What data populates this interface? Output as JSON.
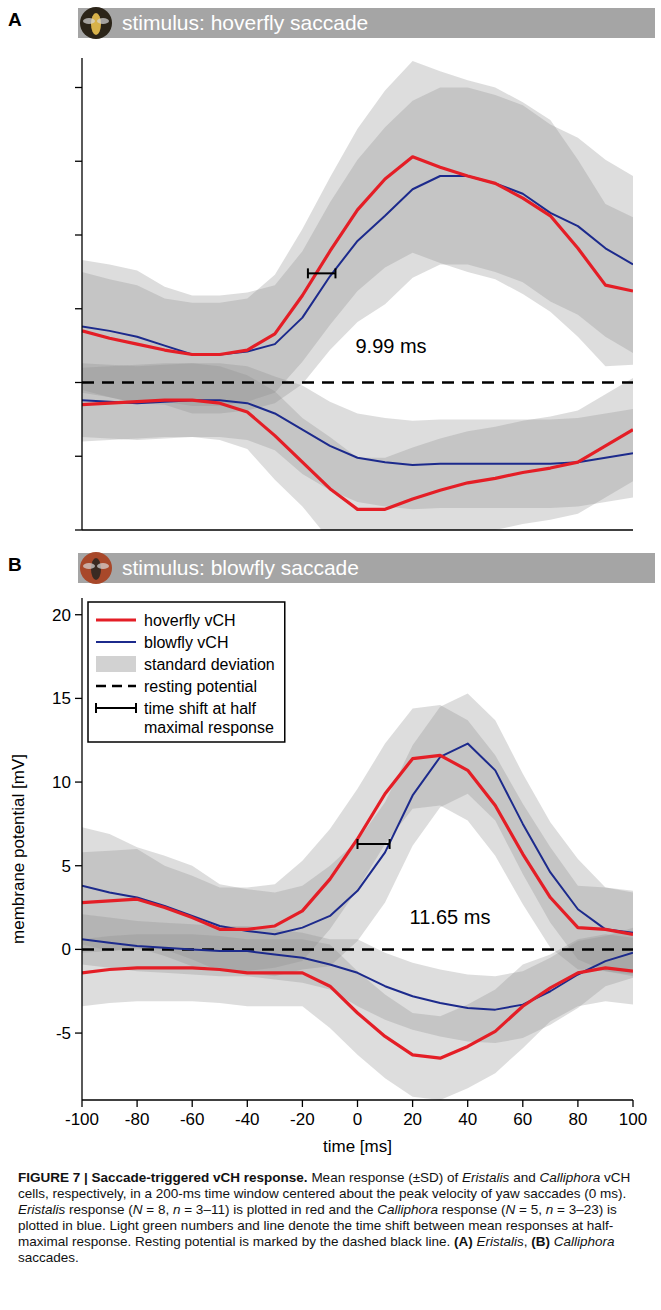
{
  "chart_data": [
    {
      "type": "line",
      "panel": "A",
      "title": "stimulus: hoverfly saccade",
      "x": [
        -100,
        -90,
        -80,
        -70,
        -60,
        -50,
        -40,
        -30,
        -20,
        -10,
        0,
        10,
        20,
        30,
        40,
        50,
        60,
        70,
        80,
        90,
        100
      ],
      "xlim": [
        -100,
        100
      ],
      "ylim": [
        -10,
        22
      ],
      "yticks": [
        -10,
        -5,
        0,
        5,
        10,
        15,
        20
      ],
      "tick_labels": false,
      "resting_potential": 0,
      "series": [
        {
          "color": "#e41e26",
          "line_style": "solid",
          "values": [
            3.5,
            3.0,
            2.6,
            2.2,
            1.9,
            1.9,
            2.2,
            3.3,
            5.9,
            8.9,
            11.7,
            13.8,
            15.3,
            14.6,
            14.0,
            13.5,
            12.5,
            11.3,
            9.1,
            6.6,
            6.2
          ],
          "sd": [
            4,
            4,
            4,
            3.5,
            3.5,
            3.5,
            3.5,
            4,
            4.5,
            5,
            5.5,
            6,
            6.5,
            6.5,
            6.5,
            6.5,
            6.5,
            6.5,
            6,
            5.5,
            5
          ]
        },
        {
          "color": "#1c2a8c",
          "line_style": "solid",
          "values": [
            3.8,
            3.5,
            3.1,
            2.5,
            1.9,
            1.9,
            2.1,
            2.6,
            4.4,
            7.2,
            9.6,
            11.3,
            13.1,
            14.0,
            14.0,
            13.5,
            12.8,
            11.5,
            10.6,
            9.1,
            8.0
          ],
          "sd": [
            4.5,
            4.5,
            4.5,
            4,
            4,
            4,
            4,
            4,
            4.5,
            5,
            5.5,
            6,
            6,
            6,
            6,
            6,
            6,
            6,
            6,
            6,
            6
          ]
        },
        {
          "color": "#e41e26",
          "line_style": "solid",
          "values": [
            -1.5,
            -1.4,
            -1.3,
            -1.2,
            -1.2,
            -1.4,
            -2.0,
            -3.6,
            -5.4,
            -7.2,
            -8.6,
            -8.6,
            -7.9,
            -7.3,
            -6.8,
            -6.5,
            -6.1,
            -5.8,
            -5.4,
            -4.3,
            -3.2
          ],
          "sd": [
            2.5,
            2.5,
            2.5,
            2.5,
            2.5,
            2.5,
            2.5,
            3,
            3,
            3.5,
            3.5,
            3.5,
            3.5,
            3.5,
            3.5,
            3.5,
            3.5,
            3.5,
            3.5,
            3.5,
            3.5
          ]
        },
        {
          "color": "#1c2a8c",
          "line_style": "solid",
          "values": [
            -1.2,
            -1.3,
            -1.4,
            -1.3,
            -1.2,
            -1.2,
            -1.4,
            -2.1,
            -3.2,
            -4.3,
            -5.1,
            -5.4,
            -5.6,
            -5.5,
            -5.5,
            -5.5,
            -5.5,
            -5.5,
            -5.4,
            -5.1,
            -4.8
          ],
          "sd": [
            2.5,
            2.5,
            2.5,
            2.5,
            2.5,
            2.5,
            2.5,
            2.5,
            3,
            3,
            3,
            3,
            3,
            3,
            3,
            3,
            3,
            3,
            3,
            3,
            3
          ]
        }
      ],
      "shift": {
        "label": "9.99 ms",
        "x": [
          -18,
          -8
        ],
        "y": 7.4
      }
    },
    {
      "type": "line",
      "panel": "B",
      "title": "stimulus: blowfly saccade",
      "x": [
        -100,
        -90,
        -80,
        -70,
        -60,
        -50,
        -40,
        -30,
        -20,
        -10,
        0,
        10,
        20,
        30,
        40,
        50,
        60,
        70,
        80,
        90,
        100
      ],
      "xlim": [
        -100,
        100
      ],
      "ylim": [
        -9,
        21
      ],
      "xticks": [
        -100,
        -80,
        -60,
        -40,
        -20,
        0,
        20,
        40,
        60,
        80,
        100
      ],
      "yticks": [
        -5,
        0,
        5,
        10,
        15,
        20
      ],
      "xlabel": "time [ms]",
      "ylabel": "membrane potential [mV]",
      "resting_potential": 0,
      "legend": "upper left",
      "sd_label": "standard deviation",
      "resting_label": "resting potential",
      "shift_legend_label": "time shift at half maximal response",
      "series": [
        {
          "name": "hoverfly vCH",
          "color": "#e41e26",
          "line_style": "solid",
          "values": [
            2.8,
            2.9,
            3.0,
            2.5,
            1.9,
            1.2,
            1.2,
            1.4,
            2.3,
            4.2,
            6.6,
            9.3,
            11.4,
            11.6,
            10.7,
            8.6,
            5.7,
            3.1,
            1.3,
            1.2,
            0.9
          ],
          "sd": [
            3,
            3,
            3,
            2.5,
            2.5,
            2.5,
            2.5,
            2.5,
            3,
            3,
            3,
            3,
            3,
            3,
            3,
            3,
            3,
            3,
            2.5,
            2.5,
            2.5
          ]
        },
        {
          "name": "blowfly vCH",
          "color": "#1c2a8c",
          "line_style": "solid",
          "values": [
            3.8,
            3.4,
            3.1,
            2.6,
            2.0,
            1.4,
            1.1,
            0.9,
            1.3,
            2.0,
            3.5,
            5.8,
            9.2,
            11.5,
            12.3,
            10.7,
            7.5,
            4.6,
            2.4,
            1.2,
            1.0
          ],
          "sd": [
            3.5,
            3.5,
            3,
            3,
            3,
            2.5,
            2.5,
            2.5,
            2.5,
            3,
            3,
            3,
            3,
            3,
            3,
            3,
            3,
            3,
            3,
            2.5,
            2.5
          ]
        },
        {
          "color": "#e41e26",
          "line_style": "solid",
          "values": [
            -1.4,
            -1.2,
            -1.1,
            -1.1,
            -1.1,
            -1.2,
            -1.4,
            -1.4,
            -1.4,
            -2.2,
            -3.8,
            -5.2,
            -6.3,
            -6.5,
            -5.8,
            -4.9,
            -3.4,
            -2.3,
            -1.4,
            -1.1,
            -1.3
          ],
          "sd": [
            2,
            2,
            2,
            2,
            2,
            2,
            2,
            2,
            2,
            2.5,
            2.5,
            2.5,
            2.5,
            2.5,
            2.5,
            2.5,
            2.5,
            2,
            2,
            2,
            2
          ]
        },
        {
          "color": "#1c2a8c",
          "line_style": "solid",
          "values": [
            0.6,
            0.4,
            0.2,
            0.1,
            0,
            -0.1,
            -0.1,
            -0.3,
            -0.5,
            -0.9,
            -1.4,
            -2.2,
            -2.8,
            -3.2,
            -3.5,
            -3.6,
            -3.3,
            -2.5,
            -1.5,
            -0.7,
            -0.2
          ],
          "sd": [
            1.5,
            1.5,
            1.5,
            1.5,
            1.5,
            1.5,
            1.5,
            1.5,
            1.5,
            1.5,
            2,
            2,
            2,
            2,
            2,
            2,
            2,
            2,
            2,
            1.5,
            1.5
          ]
        }
      ],
      "shift": {
        "label": "11.65 ms",
        "x": [
          0,
          11.65
        ],
        "y": 6.3
      }
    }
  ],
  "caption": [
    {
      "text": "FIGURE 7 | Saccade-triggered vCH response.",
      "style": "bold"
    },
    {
      "text": " Mean response (±SD) of ",
      "style": "normal"
    },
    {
      "text": "Eristalis",
      "style": "italic"
    },
    {
      "text": " and ",
      "style": "normal"
    },
    {
      "text": "Calliphora",
      "style": "italic"
    },
    {
      "text": " vCH cells, respectively, in a 200-ms time window centered about the peak velocity of yaw saccades (0 ms). ",
      "style": "normal"
    },
    {
      "text": "Eristalis",
      "style": "italic"
    },
    {
      "text": " response (",
      "style": "normal"
    },
    {
      "text": "N",
      "style": "italic"
    },
    {
      "text": " = 8, ",
      "style": "normal"
    },
    {
      "text": "n",
      "style": "italic"
    },
    {
      "text": " = 3–11) is plotted in red and the ",
      "style": "normal"
    },
    {
      "text": "Calliphora",
      "style": "italic"
    },
    {
      "text": " response (",
      "style": "normal"
    },
    {
      "text": "N",
      "style": "italic"
    },
    {
      "text": " = 5, ",
      "style": "normal"
    },
    {
      "text": "n",
      "style": "italic"
    },
    {
      "text": " = 3–23) is plotted in blue. Light green numbers and line denote the time shift between mean responses at half-maximal response. Resting potential is marked by the dashed black line. ",
      "style": "normal"
    },
    {
      "text": "(A)",
      "style": "bold"
    },
    {
      "text": " ",
      "style": "normal"
    },
    {
      "text": "Eristalis",
      "style": "italic"
    },
    {
      "text": ", ",
      "style": "normal"
    },
    {
      "text": "(B)",
      "style": "bold"
    },
    {
      "text": " ",
      "style": "normal"
    },
    {
      "text": "Calliphora",
      "style": "italic"
    },
    {
      "text": " saccades.",
      "style": "normal"
    }
  ]
}
